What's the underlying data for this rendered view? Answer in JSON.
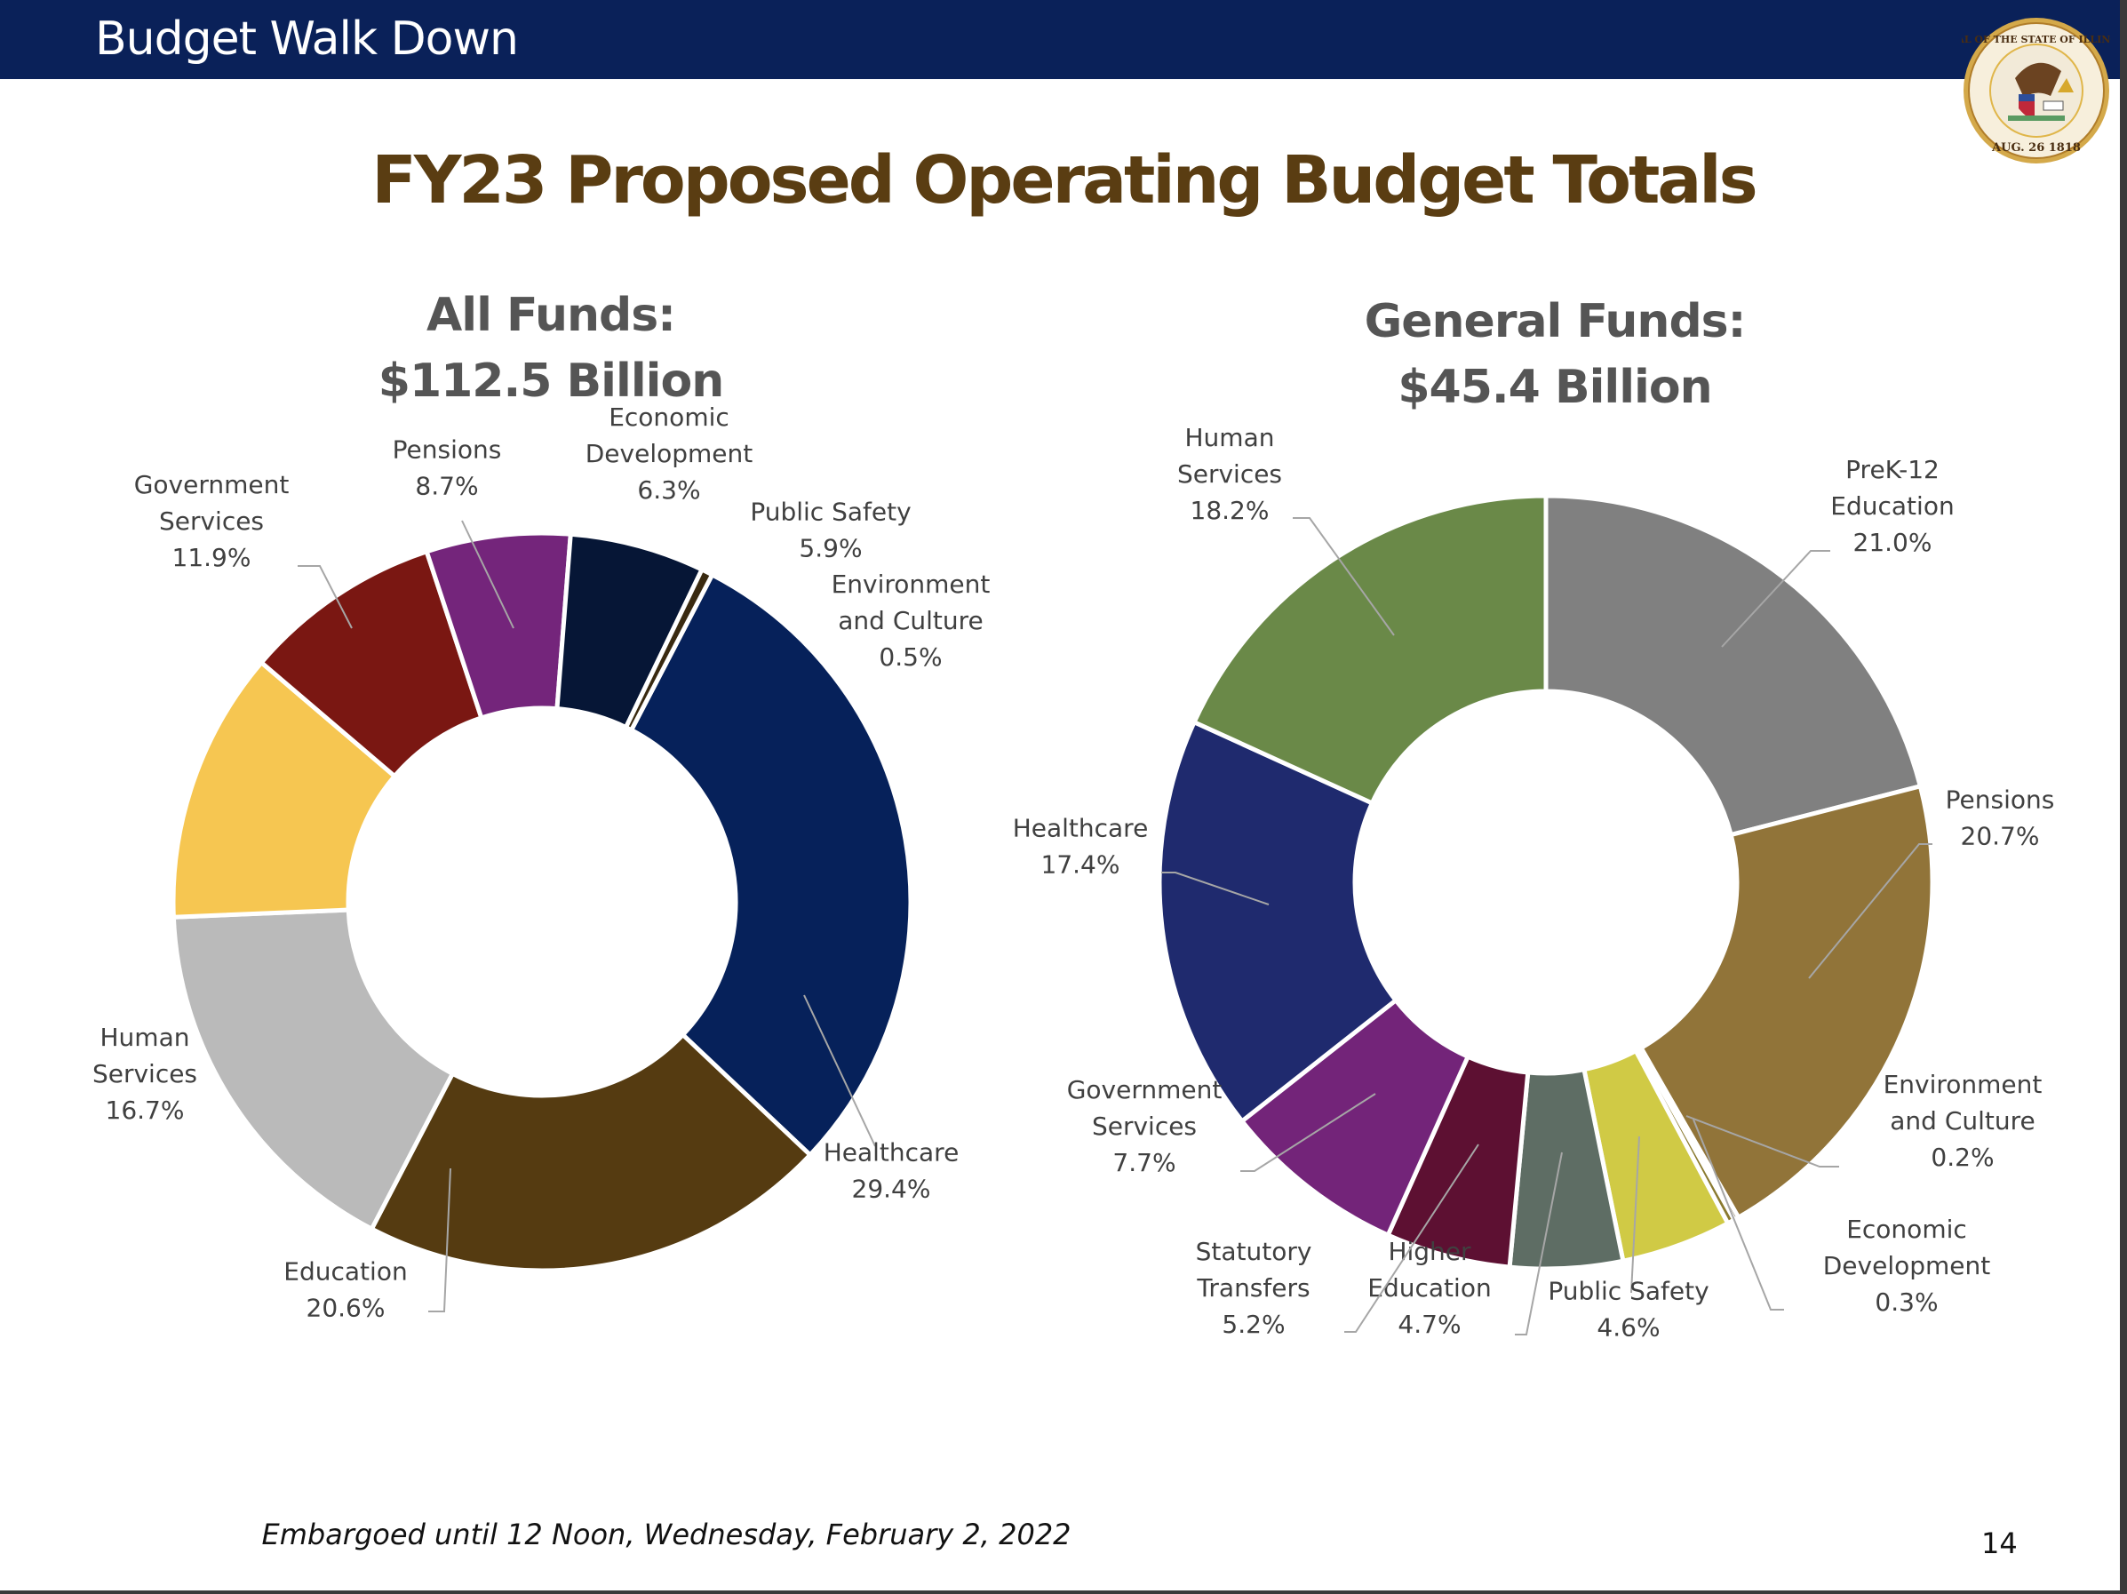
{
  "header": {
    "title": "Budget Walk Down",
    "seal": "seal-of-the-state-of-illinois"
  },
  "page": {
    "title": "FY23 Proposed Operating Budget Totals",
    "footer": "Embargoed until 12 Noon, Wednesday, February 2, 2022",
    "page_number": "14"
  },
  "chart_data": [
    {
      "type": "pie",
      "variant": "donut",
      "title": "All Funds:",
      "subtitle": "$112.5 Billion",
      "total_billion": 112.5,
      "categories": [
        "Healthcare",
        "Education",
        "Human Services",
        "Government Services",
        "Pensions",
        "Economic Development",
        "Public Safety",
        "Environment and Culture"
      ],
      "values": [
        29.4,
        20.6,
        16.7,
        11.9,
        8.7,
        6.3,
        5.9,
        0.5
      ],
      "labels": [
        "29.4%",
        "20.6%",
        "16.7%",
        "11.9%",
        "8.7%",
        "6.3%",
        "5.9%",
        "0.5%"
      ],
      "colors": [
        "#06215a",
        "#553b11",
        "#bababa",
        "#f6c651",
        "#7a1712",
        "#74257b",
        "#061636",
        "#3a2a10"
      ],
      "start": "top-clockwise-from-environment-and-culture",
      "legend": "none (data labels with leader lines)"
    },
    {
      "type": "pie",
      "variant": "donut",
      "title": "General Funds:",
      "subtitle": "$45.4 Billion",
      "total_billion": 45.4,
      "categories": [
        "PreK-12 Education",
        "Pensions",
        "Environment and Culture",
        "Economic Development",
        "Public Safety",
        "Higher Education",
        "Statutory Transfers",
        "Government Services",
        "Healthcare",
        "Human Services"
      ],
      "values": [
        21.0,
        20.7,
        0.2,
        0.3,
        4.6,
        4.7,
        5.2,
        7.7,
        17.4,
        18.2
      ],
      "labels": [
        "21.0%",
        "20.7%",
        "0.2%",
        "0.3%",
        "4.6%",
        "4.7%",
        "5.2%",
        "7.7%",
        "17.4%",
        "18.2%"
      ],
      "colors": [
        "#808080",
        "#917439",
        "#5a4520",
        "#8a7a30",
        "#d0ca45",
        "#5e6d64",
        "#5d1032",
        "#732479",
        "#1f2a6e",
        "#6a8948"
      ],
      "start": "top-clockwise",
      "legend": "none (data labels with leader lines)"
    }
  ]
}
